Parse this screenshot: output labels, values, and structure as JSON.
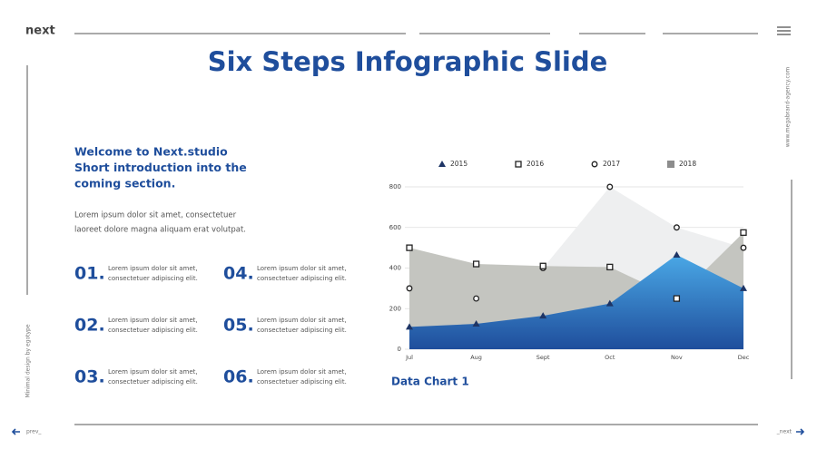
{
  "brand": "next",
  "title": "Six Steps Infographic Slide",
  "side_right": "www.megabrand-agency.com",
  "side_left": "Minimal design by egotype",
  "intro": {
    "heading": [
      "Welcome to Next.studio",
      "Short introduction into the",
      "coming section."
    ],
    "body": [
      "Lorem ipsum dolor sit amet, consectetuer",
      "laoreet dolore magna aliquam erat volutpat."
    ]
  },
  "steps": [
    {
      "number": "01.",
      "lines": [
        "Lorem ipsum dolor sit amet,",
        "consectetuer adipiscing elit."
      ]
    },
    {
      "number": "02.",
      "lines": [
        "Lorem ipsum dolor sit amet,",
        "consectetuer adipiscing elit."
      ]
    },
    {
      "number": "03.",
      "lines": [
        "Lorem ipsum dolor sit amet,",
        "consectetuer adipiscing elit."
      ]
    },
    {
      "number": "04.",
      "lines": [
        "Lorem ipsum dolor sit amet,",
        "consectetuer adipiscing elit."
      ]
    },
    {
      "number": "05.",
      "lines": [
        "Lorem ipsum dolor sit amet,",
        "consectetuer adipiscing elit."
      ]
    },
    {
      "number": "06.",
      "lines": [
        "Lorem ipsum dolor sit amet,",
        "consectetuer adipiscing elit."
      ]
    }
  ],
  "nav": {
    "prev": "prev_",
    "next": "_next"
  },
  "chart_data": {
    "type": "area",
    "title": "Data Chart 1",
    "categories": [
      "Jul",
      "Aug",
      "Sept",
      "Oct",
      "Nov",
      "Dec"
    ],
    "ylim": [
      0,
      800
    ],
    "yticks": [
      0,
      200,
      400,
      600,
      800
    ],
    "grid": true,
    "legend": "top",
    "series": [
      {
        "name": "2015",
        "color": "#4aa8e6",
        "marker": "triangle",
        "values": [
          110,
          125,
          165,
          225,
          465,
          300
        ]
      },
      {
        "name": "2016",
        "color": "#c4c5c0",
        "marker": "square",
        "values": [
          500,
          420,
          410,
          405,
          250,
          575
        ]
      },
      {
        "name": "2017",
        "color": "#eeeff0",
        "marker": "circle",
        "values": [
          300,
          250,
          400,
          800,
          600,
          500
        ]
      },
      {
        "name": "2018",
        "color": "#8c8c8c",
        "marker": "square-filled",
        "values": [
          null,
          null,
          null,
          null,
          null,
          null
        ]
      }
    ]
  }
}
